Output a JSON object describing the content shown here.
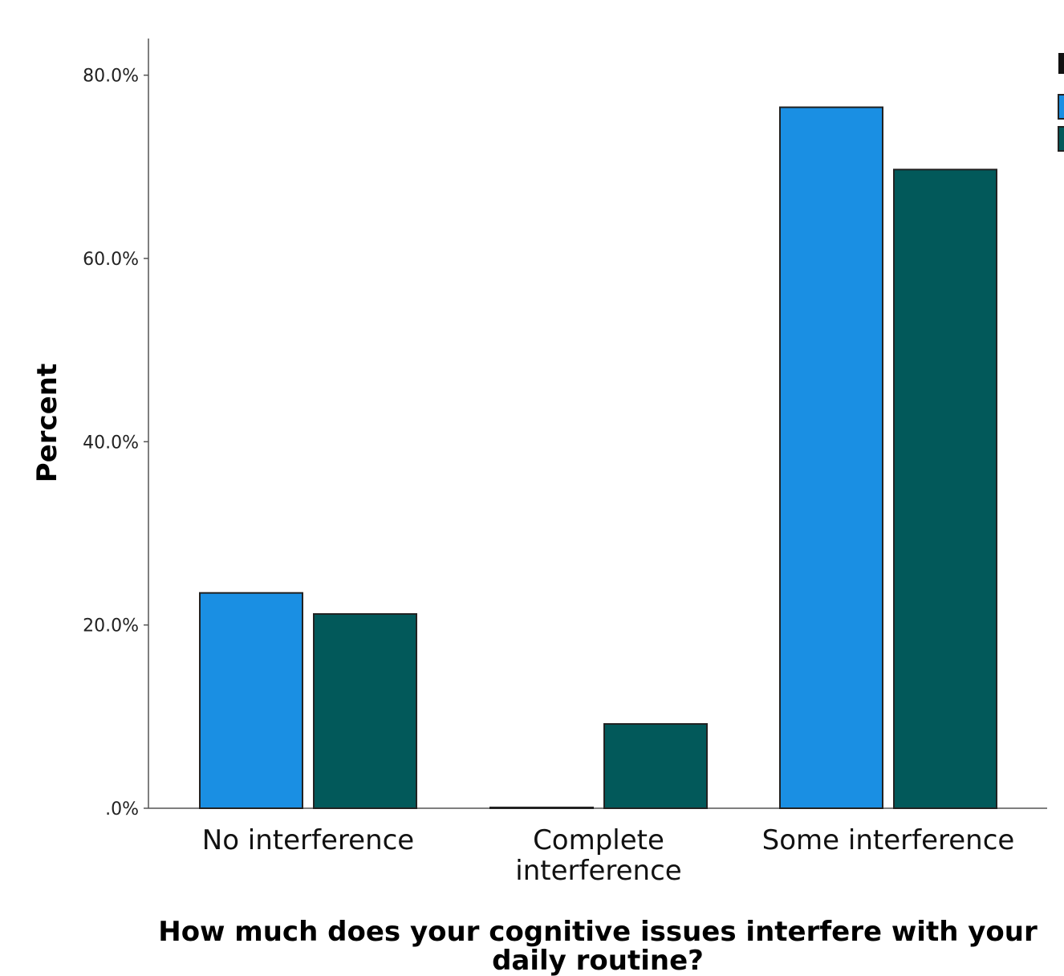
{
  "chart_data": {
    "type": "bar",
    "categories": [
      "No interference",
      "Complete interference",
      "Some interference"
    ],
    "category_lines": [
      [
        "No interference"
      ],
      [
        "Complete",
        "interference"
      ],
      [
        "Some interference"
      ]
    ],
    "series": [
      {
        "color": "#1a8fe3",
        "values": [
          23.5,
          0,
          76.5
        ]
      },
      {
        "color": "#02595a",
        "values": [
          21.2,
          9.2,
          69.7
        ]
      }
    ],
    "xlabel_lines": [
      "How much does your cognitive issues interfere with your",
      "daily routine?"
    ],
    "ylabel": "Percent",
    "yticks": [
      ".0%",
      "20.0%",
      "40.0%",
      "60.0%",
      "80.0%"
    ],
    "ytick_values": [
      0,
      20,
      40,
      60,
      80
    ],
    "ylim": [
      0,
      84
    ],
    "grid": false,
    "legend": "right, clipped"
  }
}
